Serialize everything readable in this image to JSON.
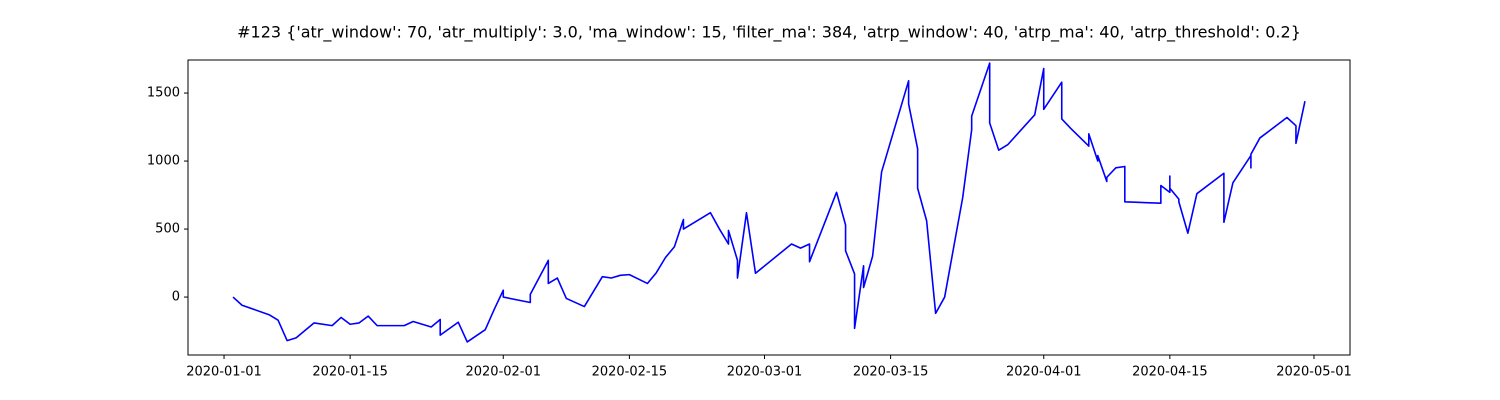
{
  "chart_data": {
    "type": "line",
    "title": "#123 {'atr_window': 70, 'atr_multiply': 3.0, 'ma_window': 15, 'filter_ma': 384, 'atrp_window': 40, 'atrp_ma': 40, 'atrp_threshold': 0.2}",
    "color": "#0000ff",
    "x": [
      "2020-01-02",
      "2020-01-03",
      "2020-01-06",
      "2020-01-07",
      "2020-01-08",
      "2020-01-09",
      "2020-01-11",
      "2020-01-13",
      "2020-01-14",
      "2020-01-15",
      "2020-01-16",
      "2020-01-17",
      "2020-01-18",
      "2020-01-21",
      "2020-01-22",
      "2020-01-23",
      "2020-01-24",
      "2020-01-25",
      "2020-01-25",
      "2020-01-27",
      "2020-01-28",
      "2020-01-30",
      "2020-01-31",
      "2020-02-01",
      "2020-02-01",
      "2020-02-04",
      "2020-02-04",
      "2020-02-06",
      "2020-02-06",
      "2020-02-07",
      "2020-02-08",
      "2020-02-10",
      "2020-02-12",
      "2020-02-13",
      "2020-02-14",
      "2020-02-15",
      "2020-02-17",
      "2020-02-18",
      "2020-02-19",
      "2020-02-20",
      "2020-02-21",
      "2020-02-21",
      "2020-02-24",
      "2020-02-25",
      "2020-02-26",
      "2020-02-26",
      "2020-02-27",
      "2020-02-27",
      "2020-02-28",
      "2020-02-29",
      "2020-03-04",
      "2020-03-05",
      "2020-03-06",
      "2020-03-06",
      "2020-03-09",
      "2020-03-10",
      "2020-03-10",
      "2020-03-11",
      "2020-03-11",
      "2020-03-12",
      "2020-03-12",
      "2020-03-13",
      "2020-03-14",
      "2020-03-17",
      "2020-03-17",
      "2020-03-18",
      "2020-03-18",
      "2020-03-19",
      "2020-03-20",
      "2020-03-21",
      "2020-03-23",
      "2020-03-24",
      "2020-03-24",
      "2020-03-26",
      "2020-03-26",
      "2020-03-27",
      "2020-03-28",
      "2020-03-31",
      "2020-04-01",
      "2020-04-01",
      "2020-04-03",
      "2020-04-03",
      "2020-04-04",
      "2020-04-06",
      "2020-04-06",
      "2020-04-07",
      "2020-04-07",
      "2020-04-08",
      "2020-04-08",
      "2020-04-09",
      "2020-04-10",
      "2020-04-10",
      "2020-04-14",
      "2020-04-14",
      "2020-04-15",
      "2020-04-15",
      "2020-04-15",
      "2020-04-16",
      "2020-04-16",
      "2020-04-17",
      "2020-04-18",
      "2020-04-21",
      "2020-04-21",
      "2020-04-21",
      "2020-04-22",
      "2020-04-24",
      "2020-04-24",
      "2020-04-24",
      "2020-04-25",
      "2020-04-28",
      "2020-04-29",
      "2020-04-29",
      "2020-04-30"
    ],
    "values": [
      0,
      -60,
      -130,
      -170,
      -320,
      -300,
      -190,
      -210,
      -150,
      -200,
      -190,
      -140,
      -210,
      -210,
      -180,
      -200,
      -220,
      -165,
      -280,
      -185,
      -330,
      -240,
      -90,
      50,
      0,
      -40,
      20,
      270,
      100,
      140,
      -10,
      -70,
      150,
      140,
      160,
      165,
      100,
      180,
      290,
      370,
      570,
      500,
      620,
      500,
      390,
      490,
      270,
      140,
      620,
      175,
      390,
      360,
      390,
      260,
      770,
      530,
      340,
      170,
      -230,
      230,
      70,
      300,
      920,
      1590,
      1420,
      1090,
      800,
      560,
      -120,
      0,
      730,
      1230,
      1330,
      1720,
      1280,
      1080,
      1120,
      1340,
      1680,
      1380,
      1580,
      1310,
      1240,
      1110,
      1200,
      1000,
      1040,
      850,
      880,
      950,
      960,
      700,
      690,
      820,
      770,
      890,
      800,
      720,
      700,
      470,
      760,
      910,
      820,
      550,
      840,
      1040,
      950,
      1050,
      1170,
      1320,
      1260,
      1130,
      1440
    ],
    "xlim": [
      "2019-12-28",
      "2020-05-05"
    ],
    "xticks": [
      "2020-01-01",
      "2020-01-15",
      "2020-02-01",
      "2020-02-15",
      "2020-03-01",
      "2020-03-15",
      "2020-04-01",
      "2020-04-15",
      "2020-05-01"
    ],
    "ylim": [
      -426,
      1743
    ],
    "yticks": [
      0,
      500,
      1000,
      1500
    ]
  }
}
